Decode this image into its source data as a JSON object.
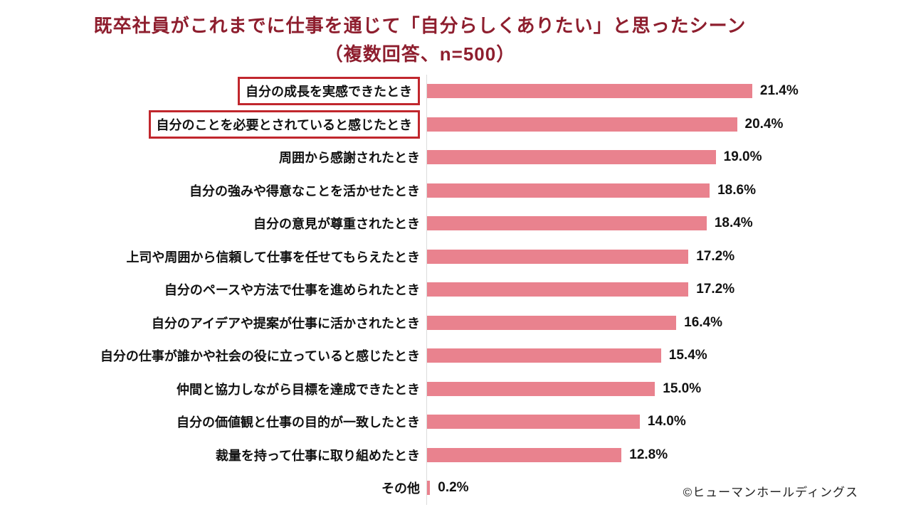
{
  "title": {
    "line1": "既卒社員がこれまでに仕事を通じて「自分らしくありたい」と思ったシーン",
    "line2": "（複数回答、n=500）"
  },
  "chart_data": {
    "type": "bar",
    "orientation": "horizontal",
    "title": "既卒社員がこれまでに仕事を通じて「自分らしくありたい」と思ったシーン（複数回答、n=500）",
    "categories": [
      "自分の成長を実感できたとき",
      "自分のことを必要とされていると感じたとき",
      "周囲から感謝されたとき",
      "自分の強みや得意なことを活かせたとき",
      "自分の意見が尊重されたとき",
      "上司や周囲から信頼して仕事を任せてもらえたとき",
      "自分のペースや方法で仕事を進められたとき",
      "自分のアイデアや提案が仕事に活かされたとき",
      "自分の仕事が誰かや社会の役に立っていると感じたとき",
      "仲間と協力しながら目標を達成できたとき",
      "自分の価値観と仕事の目的が一致したとき",
      "裁量を持って仕事に取り組めたとき",
      "その他"
    ],
    "values": [
      21.4,
      20.4,
      19.0,
      18.6,
      18.4,
      17.2,
      17.2,
      16.4,
      15.4,
      15.0,
      14.0,
      12.8,
      0.2
    ],
    "value_labels": [
      "21.4%",
      "20.4%",
      "19.0%",
      "18.6%",
      "18.4%",
      "17.2%",
      "17.2%",
      "16.4%",
      "15.4%",
      "15.0%",
      "14.0%",
      "12.8%",
      "0.2%"
    ],
    "highlighted_indexes": [
      0,
      1
    ],
    "xlim": [
      0,
      25
    ],
    "grid": false,
    "legend": "none",
    "bar_color": "#e9828e",
    "highlight_border_color": "#c1272d"
  },
  "colors": {
    "title_text": "#8e1e2e",
    "label_text": "#111111",
    "axis_line": "#dcdcdc",
    "background": "#ffffff"
  },
  "footer": {
    "copyright": "©ヒューマンホールディングス"
  }
}
